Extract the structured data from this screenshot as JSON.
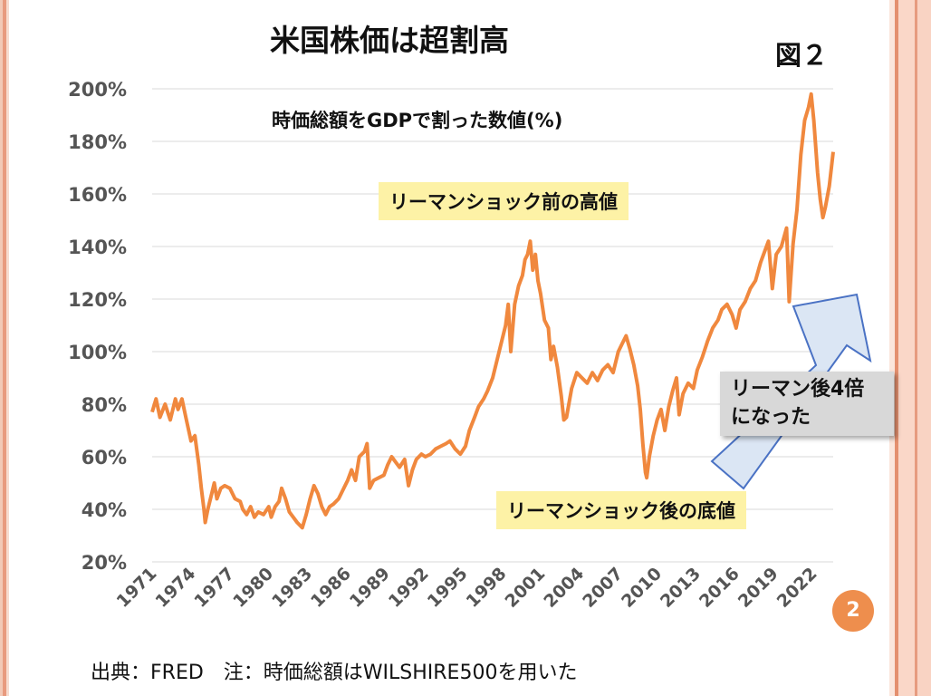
{
  "title": "米国株価は超割高",
  "figure_label": "図２",
  "subtitle": "時価総額をGDPで割った数値(%)",
  "annotations": {
    "peak": "リーマンショック前の高値",
    "bottom": "リーマンショック後の底値",
    "growth_line1": "リーマン後4倍",
    "growth_line2": "になった"
  },
  "page_number": "2",
  "source": "出典：FRED　注：時価総額はWILSHIRE500を用いた",
  "colors": {
    "line": "#f0883e",
    "arrow_fill": "#dbe6f4",
    "arrow_stroke": "#4a72c4",
    "callout_fill": "#fdf2a6",
    "badge": "#ee8e4d"
  },
  "chart_data": {
    "type": "line",
    "title": "時価総額をGDPで割った数値(%)",
    "xlabel": "",
    "ylabel": "",
    "ylim": [
      20,
      200
    ],
    "xlim": [
      1971,
      2023.6
    ],
    "grid": true,
    "y_ticks": [
      "20%",
      "40%",
      "60%",
      "80%",
      "100%",
      "120%",
      "140%",
      "160%",
      "180%",
      "200%"
    ],
    "y_tick_values": [
      20,
      40,
      60,
      80,
      100,
      120,
      140,
      160,
      180,
      200
    ],
    "x_ticks": [
      "1971",
      "1974",
      "1977",
      "1980",
      "1983",
      "1986",
      "1989",
      "1992",
      "1995",
      "1998",
      "2001",
      "2004",
      "2007",
      "2010",
      "2013",
      "2016",
      "2019",
      "2022"
    ],
    "x_tick_values": [
      1971,
      1974,
      1977,
      1980,
      1983,
      1986,
      1989,
      1992,
      1995,
      1998,
      2001,
      2004,
      2007,
      2010,
      2013,
      2016,
      2019,
      2022
    ],
    "series": [
      {
        "values": [
          [
            1971.0,
            77
          ],
          [
            1971.3,
            82
          ],
          [
            1971.6,
            75
          ],
          [
            1972.0,
            80
          ],
          [
            1972.4,
            74
          ],
          [
            1972.8,
            82
          ],
          [
            1973.0,
            78
          ],
          [
            1973.3,
            82
          ],
          [
            1973.6,
            75
          ],
          [
            1974.0,
            66
          ],
          [
            1974.3,
            68
          ],
          [
            1974.6,
            57
          ],
          [
            1974.8,
            48
          ],
          [
            1975.0,
            40
          ],
          [
            1975.1,
            35
          ],
          [
            1975.3,
            40
          ],
          [
            1975.6,
            46
          ],
          [
            1975.8,
            50
          ],
          [
            1976.0,
            44
          ],
          [
            1976.3,
            48
          ],
          [
            1976.6,
            49
          ],
          [
            1977.0,
            48
          ],
          [
            1977.4,
            44
          ],
          [
            1977.8,
            43
          ],
          [
            1978.0,
            40
          ],
          [
            1978.3,
            38
          ],
          [
            1978.6,
            41
          ],
          [
            1978.9,
            37
          ],
          [
            1979.2,
            39
          ],
          [
            1979.6,
            38
          ],
          [
            1980.0,
            41
          ],
          [
            1980.2,
            37
          ],
          [
            1980.5,
            41
          ],
          [
            1980.8,
            43
          ],
          [
            1981.0,
            48
          ],
          [
            1981.3,
            44
          ],
          [
            1981.6,
            39
          ],
          [
            1981.9,
            37
          ],
          [
            1982.2,
            35
          ],
          [
            1982.6,
            33
          ],
          [
            1982.9,
            38
          ],
          [
            1983.2,
            44
          ],
          [
            1983.5,
            49
          ],
          [
            1983.8,
            46
          ],
          [
            1984.1,
            41
          ],
          [
            1984.4,
            38
          ],
          [
            1984.7,
            41
          ],
          [
            1985.0,
            42
          ],
          [
            1985.4,
            44
          ],
          [
            1985.8,
            48
          ],
          [
            1986.1,
            51
          ],
          [
            1986.4,
            55
          ],
          [
            1986.7,
            51
          ],
          [
            1987.0,
            60
          ],
          [
            1987.4,
            62
          ],
          [
            1987.6,
            65
          ],
          [
            1987.8,
            48
          ],
          [
            1988.1,
            51
          ],
          [
            1988.5,
            52
          ],
          [
            1988.9,
            53
          ],
          [
            1989.2,
            57
          ],
          [
            1989.5,
            60
          ],
          [
            1989.8,
            58
          ],
          [
            1990.1,
            56
          ],
          [
            1990.5,
            59
          ],
          [
            1990.8,
            49
          ],
          [
            1991.1,
            55
          ],
          [
            1991.4,
            59
          ],
          [
            1991.8,
            61
          ],
          [
            1992.1,
            60
          ],
          [
            1992.5,
            61
          ],
          [
            1992.9,
            63
          ],
          [
            1993.3,
            64
          ],
          [
            1993.7,
            65
          ],
          [
            1994.0,
            66
          ],
          [
            1994.4,
            63
          ],
          [
            1994.8,
            61
          ],
          [
            1995.2,
            64
          ],
          [
            1995.5,
            70
          ],
          [
            1995.9,
            75
          ],
          [
            1996.2,
            79
          ],
          [
            1996.6,
            82
          ],
          [
            1996.9,
            85
          ],
          [
            1997.3,
            90
          ],
          [
            1997.7,
            98
          ],
          [
            1998.0,
            104
          ],
          [
            1998.3,
            110
          ],
          [
            1998.5,
            118
          ],
          [
            1998.7,
            100
          ],
          [
            1999.0,
            118
          ],
          [
            1999.3,
            125
          ],
          [
            1999.6,
            129
          ],
          [
            1999.8,
            135
          ],
          [
            2000.0,
            137
          ],
          [
            2000.2,
            142
          ],
          [
            2000.4,
            131
          ],
          [
            2000.6,
            137
          ],
          [
            2000.8,
            127
          ],
          [
            2001.0,
            122
          ],
          [
            2001.3,
            112
          ],
          [
            2001.6,
            109
          ],
          [
            2001.8,
            97
          ],
          [
            2002.0,
            102
          ],
          [
            2002.3,
            94
          ],
          [
            2002.6,
            83
          ],
          [
            2002.8,
            74
          ],
          [
            2003.0,
            75
          ],
          [
            2003.4,
            86
          ],
          [
            2003.8,
            92
          ],
          [
            2004.2,
            90
          ],
          [
            2004.6,
            88
          ],
          [
            2005.0,
            92
          ],
          [
            2005.4,
            89
          ],
          [
            2005.8,
            93
          ],
          [
            2006.2,
            95
          ],
          [
            2006.6,
            92
          ],
          [
            2007.0,
            100
          ],
          [
            2007.3,
            103
          ],
          [
            2007.6,
            106
          ],
          [
            2007.9,
            101
          ],
          [
            2008.2,
            95
          ],
          [
            2008.5,
            87
          ],
          [
            2008.7,
            78
          ],
          [
            2008.9,
            65
          ],
          [
            2009.1,
            54
          ],
          [
            2009.2,
            52
          ],
          [
            2009.4,
            60
          ],
          [
            2009.7,
            68
          ],
          [
            2010.0,
            74
          ],
          [
            2010.3,
            78
          ],
          [
            2010.6,
            70
          ],
          [
            2010.9,
            79
          ],
          [
            2011.2,
            85
          ],
          [
            2011.5,
            90
          ],
          [
            2011.7,
            76
          ],
          [
            2012.0,
            84
          ],
          [
            2012.4,
            88
          ],
          [
            2012.8,
            86
          ],
          [
            2013.1,
            93
          ],
          [
            2013.5,
            98
          ],
          [
            2013.9,
            104
          ],
          [
            2014.3,
            109
          ],
          [
            2014.7,
            112
          ],
          [
            2015.0,
            116
          ],
          [
            2015.4,
            118
          ],
          [
            2015.8,
            114
          ],
          [
            2016.1,
            109
          ],
          [
            2016.4,
            116
          ],
          [
            2016.8,
            119
          ],
          [
            2017.2,
            124
          ],
          [
            2017.6,
            127
          ],
          [
            2018.0,
            134
          ],
          [
            2018.3,
            138
          ],
          [
            2018.6,
            142
          ],
          [
            2018.9,
            124
          ],
          [
            2019.2,
            137
          ],
          [
            2019.6,
            140
          ],
          [
            2020.0,
            147
          ],
          [
            2020.2,
            119
          ],
          [
            2020.5,
            141
          ],
          [
            2020.8,
            154
          ],
          [
            2021.1,
            175
          ],
          [
            2021.4,
            188
          ],
          [
            2021.7,
            193
          ],
          [
            2021.9,
            198
          ],
          [
            2022.1,
            188
          ],
          [
            2022.4,
            168
          ],
          [
            2022.6,
            158
          ],
          [
            2022.8,
            151
          ],
          [
            2023.0,
            155
          ],
          [
            2023.3,
            163
          ],
          [
            2023.6,
            176
          ]
        ]
      }
    ]
  }
}
